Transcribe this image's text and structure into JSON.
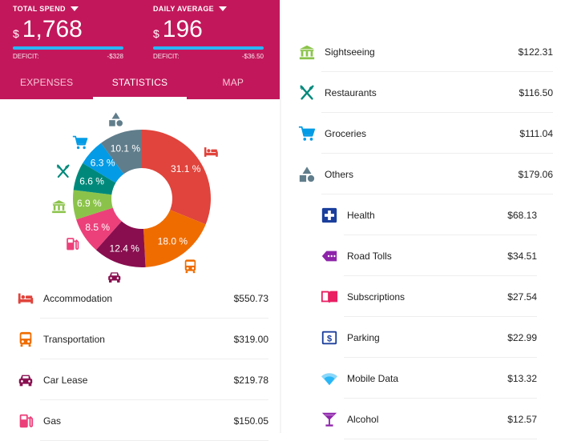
{
  "header": {
    "total_label": "TOTAL SPEND",
    "total_currency": "$",
    "total_amount": "1,768",
    "total_deficit_label": "DEFICIT:",
    "total_deficit_value": "-$328",
    "daily_label": "DAILY AVERAGE",
    "daily_currency": "$",
    "daily_amount": "196",
    "daily_deficit_label": "DEFICIT:",
    "daily_deficit_value": "-$36.50",
    "bar_color": "#29b6f6",
    "color": "#c2185b"
  },
  "tabs": [
    {
      "label": "EXPENSES",
      "active": false
    },
    {
      "label": "STATISTICS",
      "active": true
    },
    {
      "label": "MAP",
      "active": false
    }
  ],
  "chart_data": {
    "type": "pie",
    "slices": [
      {
        "category": "Accommodation",
        "value": 31.1,
        "label": "31.1 %",
        "color": "#e0443c",
        "icon": "bed-icon"
      },
      {
        "category": "Transportation",
        "value": 18.0,
        "label": "18.0 %",
        "color": "#ef6c00",
        "icon": "bus-icon"
      },
      {
        "category": "Car Lease",
        "value": 12.4,
        "label": "12.4 %",
        "color": "#880e4f",
        "icon": "car-icon"
      },
      {
        "category": "Gas",
        "value": 8.5,
        "label": "8.5 %",
        "color": "#ec407a",
        "icon": "gas-pump-icon"
      },
      {
        "category": "Sightseeing",
        "value": 6.9,
        "label": "6.9 %",
        "color": "#8bc34a",
        "icon": "museum-icon"
      },
      {
        "category": "Restaurants",
        "value": 6.6,
        "label": "6.6 %",
        "color": "#00897b",
        "icon": "fork-knife-icon"
      },
      {
        "category": "Groceries",
        "value": 6.3,
        "label": "6.3 %",
        "color": "#039be5",
        "icon": "cart-icon"
      },
      {
        "category": "Others",
        "value": 10.1,
        "label": "10.1 %",
        "color": "#607d8b",
        "icon": "shapes-icon"
      }
    ]
  },
  "categories_left": [
    {
      "name": "Accommodation",
      "amount": "$550.73",
      "icon": "bed-icon",
      "color": "#e0443c"
    },
    {
      "name": "Transportation",
      "amount": "$319.00",
      "icon": "bus-icon",
      "color": "#ef6c00"
    },
    {
      "name": "Car Lease",
      "amount": "$219.78",
      "icon": "car-icon",
      "color": "#880e4f"
    },
    {
      "name": "Gas",
      "amount": "$150.05",
      "icon": "gas-pump-icon",
      "color": "#ec407a"
    }
  ],
  "categories_right": [
    {
      "name": "Sightseeing",
      "amount": "$122.31",
      "icon": "museum-icon",
      "color": "#8bc34a"
    },
    {
      "name": "Restaurants",
      "amount": "$116.50",
      "icon": "fork-knife-icon",
      "color": "#00897b"
    },
    {
      "name": "Groceries",
      "amount": "$111.04",
      "icon": "cart-icon",
      "color": "#039be5"
    },
    {
      "name": "Others",
      "amount": "$179.06",
      "icon": "shapes-icon",
      "color": "#607d8b"
    },
    {
      "name": "Health",
      "amount": "$68.13",
      "icon": "health-cross-icon",
      "color": "#1a3e9c"
    },
    {
      "name": "Road Tolls",
      "amount": "$34.51",
      "icon": "toll-tag-icon",
      "color": "#8e24aa"
    },
    {
      "name": "Subscriptions",
      "amount": "$27.54",
      "icon": "book-icon",
      "color": "#e91e63"
    },
    {
      "name": "Parking",
      "amount": "$22.99",
      "icon": "parking-icon",
      "color": "#1a3e9c"
    },
    {
      "name": "Mobile Data",
      "amount": "$13.32",
      "icon": "wifi-icon",
      "color": "#29b6f6"
    },
    {
      "name": "Alcohol",
      "amount": "$12.57",
      "icon": "cocktail-icon",
      "color": "#8e24aa"
    }
  ]
}
